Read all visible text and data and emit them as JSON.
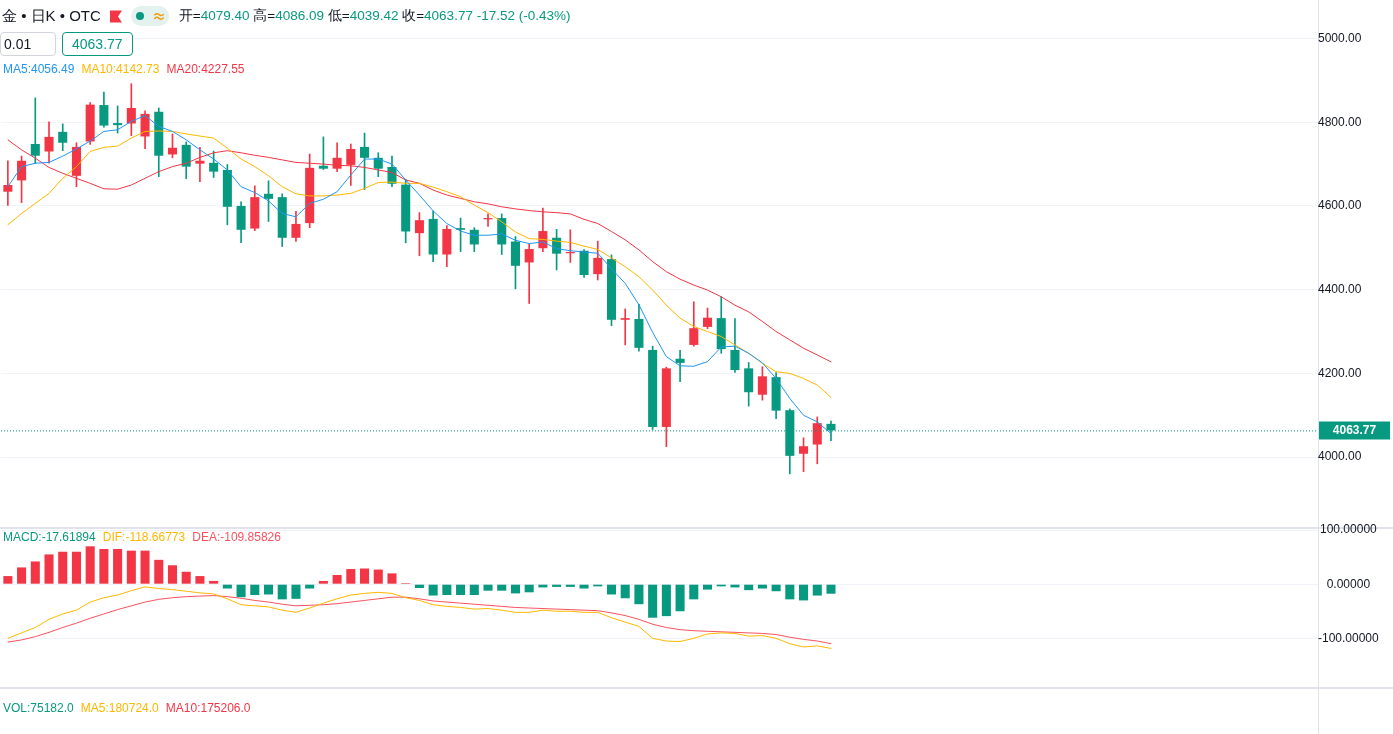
{
  "chart_data": [
    {
      "type": "candlestick",
      "title": "金 • 日K • OTC",
      "subtitle": "开=4079.40 高=4086.09 低=4039.42 收=4063.77 -17.52 (-0.43%)",
      "annotations": [
        "0.01",
        "4063.77"
      ],
      "categories": [
        null,
        null,
        null,
        null,
        null,
        null,
        null,
        null,
        null,
        null,
        null,
        null,
        null,
        null,
        null,
        null,
        null,
        null,
        null,
        null,
        null,
        null,
        null,
        null,
        null,
        null,
        null,
        null,
        null,
        null,
        null,
        null,
        null,
        null,
        null,
        null,
        null,
        null,
        null,
        null,
        null,
        null,
        null,
        null,
        null,
        null,
        null,
        null,
        null,
        null,
        null,
        null,
        null,
        null,
        null,
        null,
        null,
        null,
        null,
        null,
        null,
        null,
        null,
        null,
        null,
        null,
        null,
        null,
        null,
        null,
        null,
        null,
        null,
        null,
        null,
        null,
        null,
        null,
        null,
        null,
        null,
        null,
        null,
        null,
        null,
        null,
        null,
        null,
        null,
        null,
        null,
        null,
        null,
        null,
        null,
        null
      ],
      "ohlc": [
        [
          4634,
          4708,
          4601,
          4650
        ],
        [
          4661,
          4719,
          4608,
          4708
        ],
        [
          4748,
          4858,
          4702,
          4720
        ],
        [
          4730,
          4801,
          4702,
          4765
        ],
        [
          4777,
          4796,
          4732,
          4751
        ],
        [
          4672,
          4751,
          4646,
          4741
        ],
        [
          4754,
          4847,
          4747,
          4842
        ],
        [
          4841,
          4872,
          4788,
          4792
        ],
        [
          4798,
          4839,
          4774,
          4793
        ],
        [
          4797,
          4892,
          4768,
          4834
        ],
        [
          4766,
          4827,
          4737,
          4820
        ],
        [
          4825,
          4834,
          4670,
          4720
        ],
        [
          4723,
          4772,
          4715,
          4739
        ],
        [
          4746,
          4753,
          4665,
          4694
        ],
        [
          4701,
          4740,
          4658,
          4708
        ],
        [
          4703,
          4731,
          4668,
          4682
        ],
        [
          4686,
          4699,
          4555,
          4598
        ],
        [
          4600,
          4610,
          4512,
          4543
        ],
        [
          4546,
          4648,
          4541,
          4621
        ],
        [
          4629,
          4660,
          4563,
          4617
        ],
        [
          4621,
          4629,
          4503,
          4524
        ],
        [
          4524,
          4587,
          4515,
          4557
        ],
        [
          4559,
          4724,
          4548,
          4691
        ],
        [
          4696,
          4765,
          4687,
          4689
        ],
        [
          4689,
          4751,
          4682,
          4715
        ],
        [
          4698,
          4748,
          4649,
          4736
        ],
        [
          4741,
          4774,
          4639,
          4715
        ],
        [
          4715,
          4727,
          4670,
          4689
        ],
        [
          4693,
          4719,
          4646,
          4653
        ],
        [
          4651,
          4664,
          4512,
          4539
        ],
        [
          4535,
          4584,
          4481,
          4566
        ],
        [
          4569,
          4588,
          4467,
          4484
        ],
        [
          4484,
          4553,
          4455,
          4545
        ],
        [
          4547,
          4571,
          4491,
          4543
        ],
        [
          4543,
          4548,
          4491,
          4508
        ],
        [
          4568,
          4581,
          4551,
          4571
        ],
        [
          4571,
          4581,
          4484,
          4508
        ],
        [
          4515,
          4527,
          4402,
          4457
        ],
        [
          4465,
          4509,
          4367,
          4497
        ],
        [
          4499,
          4595,
          4491,
          4540
        ],
        [
          4524,
          4544,
          4447,
          4486
        ],
        [
          4487,
          4543,
          4465,
          4490
        ],
        [
          4493,
          4496,
          4429,
          4435
        ],
        [
          4437,
          4516,
          4423,
          4476
        ],
        [
          4473,
          4483,
          4314,
          4328
        ],
        [
          4328,
          4354,
          4268,
          4332
        ],
        [
          4330,
          4365,
          4253,
          4261
        ],
        [
          4256,
          4265,
          4066,
          4072
        ],
        [
          4072,
          4215,
          4025,
          4212
        ],
        [
          4235,
          4255,
          4180,
          4225
        ],
        [
          4268,
          4371,
          4265,
          4308
        ],
        [
          4311,
          4356,
          4307,
          4333
        ],
        [
          4332,
          4383,
          4248,
          4258
        ],
        [
          4256,
          4331,
          4202,
          4208
        ],
        [
          4212,
          4226,
          4122,
          4155
        ],
        [
          4149,
          4216,
          4136,
          4193
        ],
        [
          4191,
          4202,
          4092,
          4111
        ],
        [
          4112,
          4115,
          3960,
          4003
        ],
        [
          4008,
          4046,
          3965,
          4026
        ],
        [
          4030,
          4096,
          3984,
          4081
        ],
        [
          4079.4,
          4086.09,
          4039.42,
          4063.77
        ],
        null,
        null,
        null,
        null,
        null,
        null,
        null,
        null,
        null,
        null,
        null,
        null,
        null,
        null,
        null,
        null,
        null,
        null,
        null,
        null,
        null,
        null,
        null,
        null,
        null,
        null,
        null,
        null,
        null,
        null,
        null,
        null,
        null,
        null,
        null
      ],
      "colors": [
        "#f23645",
        "#f23645",
        "#089981",
        "#f23645",
        "#089981",
        "#f23645",
        "#f23645",
        "#089981",
        "#089981",
        "#f23645",
        "#f23645",
        "#089981",
        "#f23645",
        "#089981",
        "#f23645",
        "#089981",
        "#089981",
        "#089981",
        "#f23645",
        "#089981",
        "#089981",
        "#f23645",
        "#f23645",
        "#089981",
        "#f23645",
        "#f23645",
        "#089981",
        "#089981",
        "#089981",
        "#089981",
        "#f23645",
        "#089981",
        "#f23645",
        "#089981",
        "#089981",
        "#f23645",
        "#089981",
        "#089981",
        "#f23645",
        "#f23645",
        "#089981",
        "#f23645",
        "#089981",
        "#f23645",
        "#089981",
        "#f23645",
        "#089981",
        "#089981",
        "#f23645",
        "#089981",
        "#f23645",
        "#f23645",
        "#089981",
        "#089981",
        "#089981",
        "#f23645",
        "#089981",
        "#089981",
        "#f23645",
        "#f23645",
        "#089981",
        null,
        null,
        null,
        null,
        null,
        null,
        null,
        null,
        null,
        null,
        null,
        null,
        null,
        null,
        null,
        null,
        null,
        null,
        null,
        null,
        null,
        null,
        null,
        null,
        null,
        null,
        null,
        null,
        null,
        null,
        null,
        null,
        null,
        null,
        null
      ],
      "series": [
        {
          "name": "MA5:4056.49",
          "type": "line",
          "color": "#2196f3",
          "values": [
            4646,
            4694,
            4702,
            4704,
            4719,
            4736,
            4755,
            4778,
            4782,
            4802,
            4816,
            4790,
            4778,
            4758,
            4734,
            4712,
            4686,
            4646,
            4632,
            4612,
            4582,
            4574,
            4606,
            4616,
            4634,
            4674,
            4712,
            4712,
            4700,
            4662,
            4626,
            4588,
            4558,
            4540,
            4530,
            4530,
            4533,
            4518,
            4510,
            4514,
            4498,
            4493,
            4490,
            4487,
            4450,
            4415,
            4364,
            4298,
            4240,
            4218,
            4217,
            4228,
            4263,
            4265,
            4248,
            4225,
            4188,
            4140,
            4100,
            4084,
            4056.49,
            null,
            null,
            null,
            null,
            null,
            null,
            null,
            null,
            null,
            null,
            null,
            null,
            null,
            null,
            null,
            null,
            null,
            null,
            null,
            null,
            null,
            null,
            null,
            null,
            null,
            null,
            null,
            null,
            null,
            null,
            null,
            null,
            null,
            null,
            null
          ]
        },
        {
          "name": "MA10:4142.73",
          "type": "line",
          "color": "#ffb800",
          "values": [
            4555,
            4582,
            4606,
            4630,
            4666,
            4694,
            4730,
            4740,
            4743,
            4762,
            4778,
            4779,
            4778,
            4772,
            4767,
            4762,
            4738,
            4712,
            4694,
            4672,
            4646,
            4629,
            4624,
            4624,
            4626,
            4630,
            4642,
            4656,
            4657,
            4654,
            4654,
            4645,
            4634,
            4622,
            4602,
            4584,
            4562,
            4538,
            4522,
            4520,
            4516,
            4513,
            4504,
            4496,
            4476,
            4455,
            4431,
            4399,
            4363,
            4332,
            4312,
            4300,
            4288,
            4268,
            4248,
            4224,
            4204,
            4200,
            4188,
            4172,
            4142.73,
            null,
            null,
            null,
            null,
            null,
            null,
            null,
            null,
            null,
            null,
            null,
            null,
            null,
            null,
            null,
            null,
            null,
            null,
            null,
            null,
            null,
            null,
            null,
            null,
            null,
            null,
            null,
            null,
            null,
            null,
            null,
            null,
            null,
            null,
            null
          ]
        },
        {
          "name": "MA20:4227.55",
          "type": "line",
          "color": "#f23645",
          "values": [
            4758,
            4734,
            4714,
            4692,
            4678,
            4666,
            4654,
            4641,
            4640,
            4650,
            4666,
            4682,
            4694,
            4702,
            4716,
            4727,
            4732,
            4727,
            4721,
            4716,
            4710,
            4704,
            4702,
            4700,
            4697,
            4696,
            4692,
            4686,
            4680,
            4662,
            4654,
            4638,
            4626,
            4618,
            4610,
            4605,
            4598,
            4593,
            4589,
            4586,
            4584,
            4581,
            4568,
            4558,
            4539,
            4519,
            4495,
            4467,
            4443,
            4425,
            4411,
            4399,
            4383,
            4363,
            4347,
            4324,
            4300,
            4280,
            4260,
            4244,
            4227.55,
            null,
            null,
            null,
            null,
            null,
            null,
            null,
            null,
            null,
            null,
            null,
            null,
            null,
            null,
            null,
            null,
            null,
            null,
            null,
            null,
            null,
            null,
            null,
            null,
            null,
            null,
            null,
            null,
            null,
            null,
            null,
            null,
            null,
            null,
            null
          ]
        }
      ],
      "ylim": [
        3833,
        5092
      ],
      "yticks": [
        {
          "value": 4000,
          "label": "4000.00"
        },
        {
          "value": 4200,
          "label": "4200.00"
        },
        {
          "value": 4400,
          "label": "4400.00"
        },
        {
          "value": 4600,
          "label": "4600.00"
        },
        {
          "value": 4800,
          "label": "4800.00"
        },
        {
          "value": 5000,
          "label": "5000.00"
        }
      ],
      "grid": "y",
      "legend": "top left",
      "tick_labels": "y",
      "ref_lines": [
        {
          "axis": "y",
          "value": 4063.77,
          "label": "4063.77",
          "color": "#089981",
          "line_style": "dotted"
        }
      ]
    },
    {
      "type": "bar",
      "categories": [
        null,
        null,
        null,
        null,
        null,
        null,
        null,
        null,
        null,
        null,
        null,
        null,
        null,
        null,
        null,
        null,
        null,
        null,
        null,
        null,
        null,
        null,
        null,
        null,
        null,
        null,
        null,
        null,
        null,
        null,
        null,
        null,
        null,
        null,
        null,
        null,
        null,
        null,
        null,
        null,
        null,
        null,
        null,
        null,
        null,
        null,
        null,
        null,
        null,
        null,
        null,
        null,
        null,
        null,
        null,
        null,
        null,
        null,
        null,
        null,
        null,
        null,
        null,
        null,
        null,
        null,
        null,
        null,
        null,
        null,
        null,
        null,
        null,
        null,
        null,
        null,
        null,
        null,
        null,
        null,
        null,
        null,
        null,
        null,
        null,
        null,
        null,
        null,
        null,
        null,
        null,
        null,
        null,
        null,
        null,
        null
      ],
      "series": [
        {
          "name": "MACD:-17.61894",
          "type": "bar",
          "colors": [
            "#f23645",
            "#f23645",
            "#f23645",
            "#f23645",
            "#f23645",
            "#f23645",
            "#f23645",
            "#f23645",
            "#f23645",
            "#f23645",
            "#f23645",
            "#f23645",
            "#f23645",
            "#f23645",
            "#f23645",
            "#f23645",
            "#089981",
            "#089981",
            "#089981",
            "#089981",
            "#089981",
            "#089981",
            "#089981",
            "#f23645",
            "#f23645",
            "#f23645",
            "#f23645",
            "#f23645",
            "#f23645",
            "#f23645",
            "#089981",
            "#089981",
            "#089981",
            "#089981",
            "#089981",
            "#089981",
            "#089981",
            "#089981",
            "#089981",
            "#089981",
            "#089981",
            "#089981",
            "#089981",
            "#089981",
            "#089981",
            "#089981",
            "#089981",
            "#089981",
            "#089981",
            "#089981",
            "#089981",
            "#089981",
            "#089981",
            "#089981",
            "#089981",
            "#089981",
            "#089981",
            "#089981",
            "#089981",
            "#089981",
            "#089981",
            null,
            null,
            null,
            null,
            null,
            null,
            null,
            null,
            null,
            null,
            null,
            null,
            null,
            null,
            null,
            null,
            null,
            null,
            null,
            null,
            null,
            null,
            null,
            null,
            null,
            null,
            null,
            null,
            null,
            null,
            null,
            null,
            null,
            null,
            null
          ],
          "values": [
            15,
            31,
            42,
            55,
            60,
            60,
            70,
            65,
            65,
            62,
            62,
            45,
            35,
            23,
            15,
            6,
            -8,
            -24,
            -20,
            -19,
            -28,
            -27,
            -8,
            6,
            17,
            28,
            29,
            27,
            20,
            2,
            -7,
            -21,
            -20,
            -20,
            -20,
            -12,
            -12,
            -17,
            -15,
            -6,
            -5,
            -5,
            -8,
            -4,
            -19,
            -26,
            -37,
            -62,
            -59,
            -50,
            -28,
            -10,
            -4,
            -6,
            -11,
            -8,
            -13,
            -28,
            -30,
            -21,
            -17.61894,
            null,
            null,
            null,
            null,
            null,
            null,
            null,
            null,
            null,
            null,
            null,
            null,
            null,
            null,
            null,
            null,
            null,
            null,
            null,
            null,
            null,
            null,
            null,
            null,
            null,
            null,
            null,
            null,
            null,
            null,
            null,
            null,
            null,
            null,
            null
          ]
        },
        {
          "name": "DIF:-118.66773",
          "type": "line",
          "color": "#ffb800",
          "values": [
            -100,
            -90,
            -80,
            -65,
            -55,
            -48,
            -33,
            -25,
            -20,
            -12,
            -5,
            -8,
            -10,
            -13,
            -16,
            -18,
            -27,
            -38,
            -40,
            -42,
            -48,
            -52,
            -44,
            -35,
            -27,
            -20,
            -17,
            -15,
            -17,
            -25,
            -30,
            -38,
            -41,
            -43,
            -46,
            -45,
            -48,
            -52,
            -52,
            -48,
            -50,
            -50,
            -52,
            -52,
            -62,
            -70,
            -78,
            -100,
            -105,
            -106,
            -100,
            -92,
            -90,
            -91,
            -96,
            -95,
            -100,
            -110,
            -116,
            -114,
            -118.66773,
            null,
            null,
            null,
            null,
            null,
            null,
            null,
            null,
            null,
            null,
            null,
            null,
            null,
            null,
            null,
            null,
            null,
            null,
            null,
            null,
            null,
            null,
            null,
            null,
            null,
            null,
            null,
            null,
            null,
            null,
            null,
            null,
            null,
            null,
            null
          ]
        },
        {
          "name": "DEA:-109.85826",
          "type": "line",
          "color": "#f7525f",
          "values": [
            -107,
            -103,
            -97,
            -89,
            -80,
            -72,
            -63,
            -55,
            -47,
            -40,
            -33,
            -28,
            -25,
            -23,
            -22,
            -21,
            -23,
            -26,
            -30,
            -33,
            -37,
            -40,
            -39,
            -38,
            -36,
            -33,
            -30,
            -27,
            -24,
            -24,
            -27,
            -31,
            -33,
            -35,
            -37,
            -39,
            -41,
            -43,
            -44,
            -45,
            -46,
            -47,
            -48,
            -49,
            -53,
            -58,
            -65,
            -74,
            -80,
            -84,
            -86,
            -87,
            -88,
            -89,
            -90,
            -91,
            -93,
            -98,
            -102,
            -105,
            -109.85826,
            null,
            null,
            null,
            null,
            null,
            null,
            null,
            null,
            null,
            null,
            null,
            null,
            null,
            null,
            null,
            null,
            null,
            null,
            null,
            null,
            null,
            null,
            null,
            null,
            null,
            null,
            null,
            null,
            null,
            null,
            null,
            null,
            null,
            null,
            null
          ]
        }
      ],
      "ylim": [
        -190,
        102
      ],
      "yticks": [
        {
          "value": 100,
          "label": "100.00000"
        },
        {
          "value": 0,
          "label": "0.00000"
        },
        {
          "value": -100,
          "label": "-100.00000"
        }
      ],
      "grid": "y",
      "legend": "top left",
      "tick_labels": "y"
    },
    {
      "type": "other",
      "series": [
        {
          "name": "VOL:75182.0",
          "color": "#089981"
        },
        {
          "name": "MA5:180724.0",
          "color": "#ffb800"
        },
        {
          "name": "MA10:175206.0",
          "color": "#f23645"
        }
      ]
    }
  ]
}
